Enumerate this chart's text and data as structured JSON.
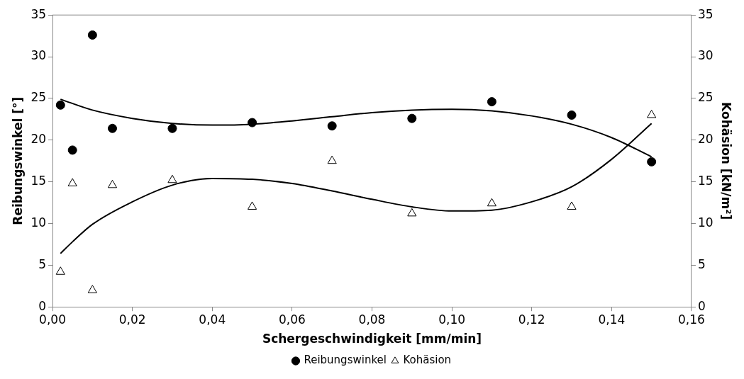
{
  "chart_data": {
    "type": "scatter",
    "xlabel": "Schergeschwindigkeit [mm/min]",
    "ylabel": "Reibungswinkel [°]",
    "y2label": "Kohäsion [kN/m²]",
    "xlim": [
      0,
      0.16
    ],
    "xticks": [
      {
        "value": 0,
        "label": "0,00"
      },
      {
        "value": 0.02,
        "label": "0,02"
      },
      {
        "value": 0.04,
        "label": "0,04"
      },
      {
        "value": 0.06,
        "label": "0,06"
      },
      {
        "value": 0.08,
        "label": "0,08"
      },
      {
        "value": 0.1,
        "label": "0,10"
      },
      {
        "value": 0.12,
        "label": "0,12"
      },
      {
        "value": 0.14,
        "label": "0,14"
      },
      {
        "value": 0.16,
        "label": "0,16"
      }
    ],
    "ylim": [
      0,
      35
    ],
    "yticks": [
      0,
      5,
      10,
      15,
      20,
      25,
      30,
      35
    ],
    "y2lim": [
      0,
      35
    ],
    "y2ticks": [
      0,
      5,
      10,
      15,
      20,
      25,
      30,
      35
    ],
    "grid": false,
    "legend": "bottom",
    "series": [
      {
        "name": "Reibungswinkel",
        "type": "scatter",
        "marker": "circle",
        "color": "#000000",
        "x": [
          0.002,
          0.005,
          0.01,
          0.015,
          0.03,
          0.05,
          0.07,
          0.09,
          0.11,
          0.13,
          0.15
        ],
        "values": [
          24.2,
          18.8,
          32.6,
          21.4,
          21.4,
          22.1,
          21.7,
          22.6,
          24.6,
          23.0,
          17.4
        ]
      },
      {
        "name": "Kohäsion",
        "type": "scatter",
        "marker": "triangle",
        "color": "#000000",
        "axis": "y2",
        "x": [
          0.002,
          0.005,
          0.01,
          0.015,
          0.03,
          0.05,
          0.07,
          0.09,
          0.11,
          0.13,
          0.15
        ],
        "values": [
          4.2,
          14.8,
          2.0,
          14.6,
          15.2,
          12.0,
          17.5,
          11.2,
          12.4,
          12.0,
          23.0
        ]
      },
      {
        "type": "line",
        "marker": "none",
        "color": "#000000",
        "x": [
          0.002,
          0.01,
          0.02,
          0.03,
          0.04,
          0.05,
          0.06,
          0.07,
          0.08,
          0.09,
          0.1,
          0.11,
          0.12,
          0.13,
          0.14,
          0.15
        ],
        "values": [
          24.9,
          23.6,
          22.6,
          22.0,
          21.8,
          21.9,
          22.3,
          22.8,
          23.3,
          23.6,
          23.7,
          23.5,
          22.9,
          21.9,
          20.3,
          18.0
        ]
      },
      {
        "type": "line",
        "marker": "none",
        "color": "#000000",
        "axis": "y2",
        "x": [
          0.002,
          0.005,
          0.01,
          0.02,
          0.03,
          0.04,
          0.05,
          0.06,
          0.07,
          0.08,
          0.09,
          0.1,
          0.11,
          0.12,
          0.13,
          0.14,
          0.15
        ],
        "values": [
          6.4,
          7.8,
          9.9,
          12.6,
          14.6,
          15.4,
          15.3,
          14.8,
          13.9,
          12.9,
          12.0,
          11.5,
          11.6,
          12.6,
          14.4,
          17.7,
          22.0
        ]
      }
    ]
  }
}
